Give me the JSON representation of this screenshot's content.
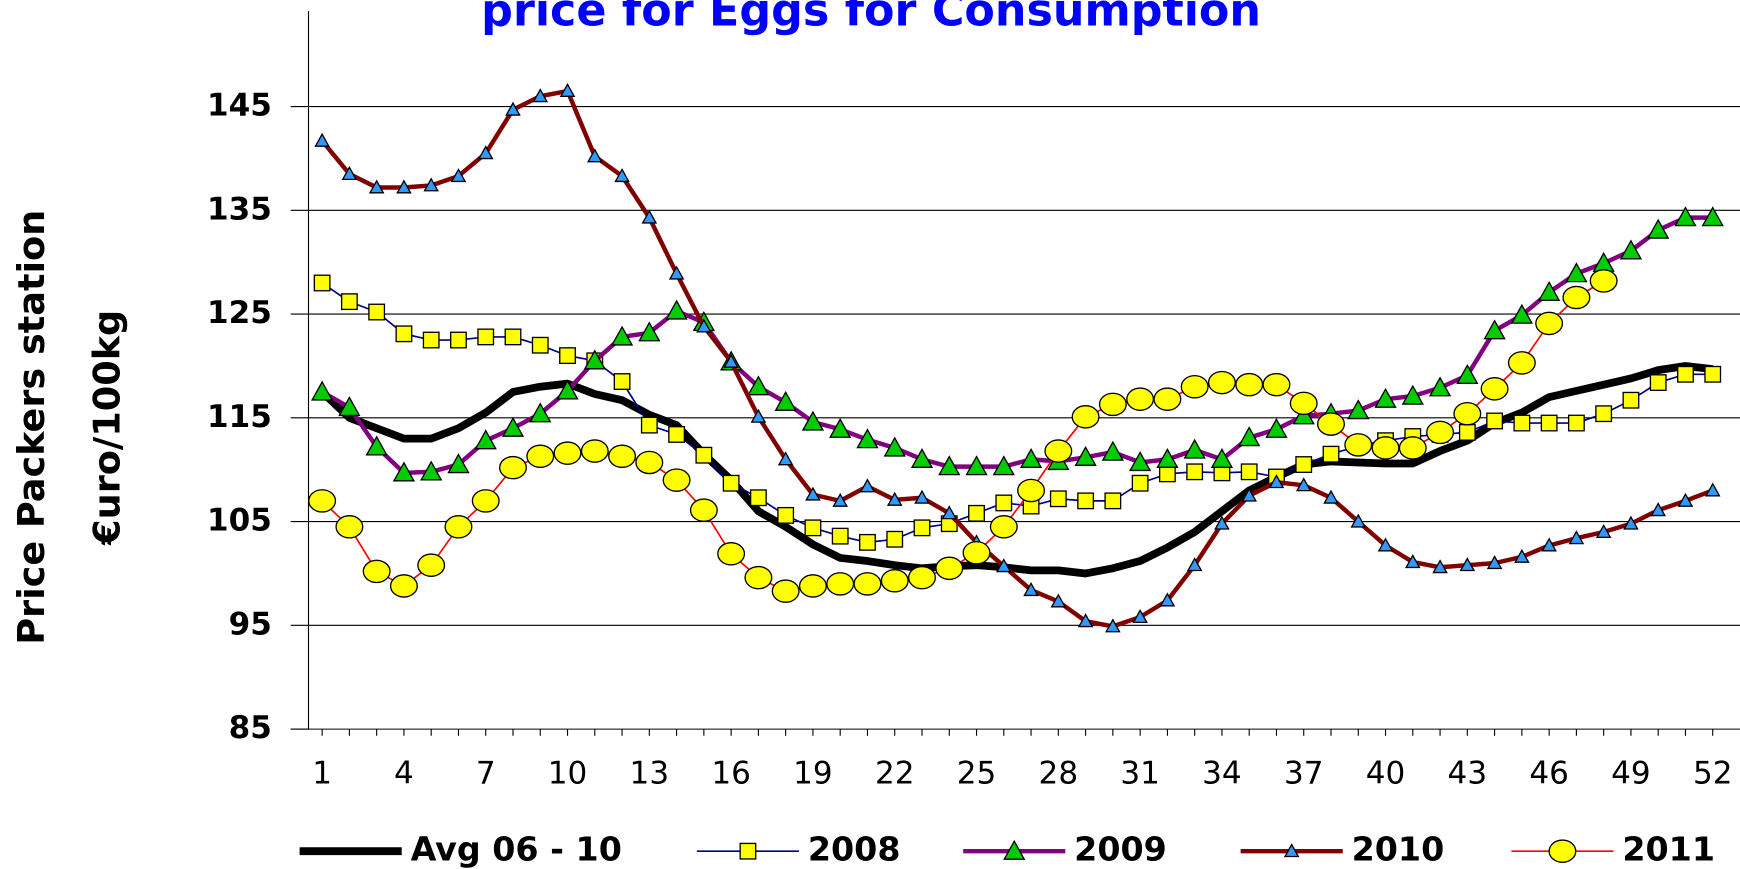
{
  "chart_data": {
    "type": "line",
    "title": "price for Eggs for Consumption",
    "y_label": [
      "Price Packers station",
      "€uro/100kg"
    ],
    "x": [
      1,
      2,
      3,
      4,
      5,
      6,
      7,
      8,
      9,
      10,
      11,
      12,
      13,
      14,
      15,
      16,
      17,
      18,
      19,
      20,
      21,
      22,
      23,
      24,
      25,
      26,
      27,
      28,
      29,
      30,
      31,
      32,
      33,
      34,
      35,
      36,
      37,
      38,
      39,
      40,
      41,
      42,
      43,
      44,
      45,
      46,
      47,
      48,
      49,
      50,
      51,
      52
    ],
    "xlim": [
      0.5,
      53
    ],
    "xticks": [
      1,
      4,
      7,
      10,
      13,
      16,
      19,
      22,
      25,
      28,
      31,
      34,
      37,
      40,
      43,
      46,
      49,
      52
    ],
    "ylim": [
      85,
      155
    ],
    "yticks": [
      85,
      95,
      105,
      115,
      125,
      135,
      145
    ],
    "grid": true,
    "legend": "bottom",
    "series": [
      {
        "name": "Avg 06 - 10",
        "color": "#000000",
        "marker": "none",
        "marker_color": "#000000",
        "line_width": 7,
        "values": [
          117.5,
          115,
          114,
          113,
          113,
          114,
          115.5,
          117.5,
          118,
          118.3,
          117.3,
          116.7,
          115.3,
          114.3,
          111.5,
          109,
          106,
          104.5,
          102.8,
          101.5,
          101.2,
          100.8,
          100.5,
          100.7,
          100.8,
          100.6,
          100.3,
          100.3,
          100,
          100.5,
          101.2,
          102.5,
          104,
          106,
          108,
          109.3,
          110.5,
          110.8,
          110.7,
          110.6,
          110.6,
          111.8,
          112.8,
          114.5,
          115.5,
          117,
          117.6,
          118.2,
          118.8,
          119.6,
          120,
          119.7
        ]
      },
      {
        "name": "2008",
        "color": "#000080",
        "marker": "square",
        "marker_color": "#ffff00",
        "line_width": 1.5,
        "values": [
          128,
          126.2,
          125.2,
          123.1,
          122.5,
          122.5,
          122.8,
          122.8,
          122,
          121,
          120.5,
          118.5,
          114.3,
          113.4,
          111.4,
          108.7,
          107.3,
          105.6,
          104.4,
          103.6,
          103,
          103.3,
          104.4,
          104.8,
          105.8,
          106.8,
          106.5,
          107.2,
          107,
          107,
          108.7,
          109.6,
          109.8,
          109.7,
          109.8,
          109.3,
          110.5,
          111.5,
          112.3,
          112.8,
          113.2,
          113.4,
          113.6,
          114.7,
          114.5,
          114.5,
          114.5,
          115.4,
          116.7,
          118.4,
          119.2,
          119.2
        ]
      },
      {
        "name": "2009",
        "color": "#800080",
        "marker": "triangle",
        "marker_color": "#00cc00",
        "line_width": 4,
        "values": [
          117.5,
          116,
          112.2,
          109.7,
          109.8,
          110.5,
          112.8,
          114,
          115.4,
          117.6,
          120.5,
          122.8,
          123.2,
          125.3,
          124.2,
          120.4,
          118,
          116.5,
          114.6,
          113.9,
          112.9,
          112.1,
          111,
          110.3,
          110.3,
          110.3,
          111,
          110.8,
          111.2,
          111.7,
          110.7,
          111,
          111.9,
          111,
          113.1,
          113.9,
          115.2,
          115.4,
          115.7,
          116.8,
          117.1,
          117.9,
          119.1,
          123.4,
          124.9,
          127.1,
          128.9,
          129.9,
          131.1,
          133.1,
          134.3,
          134.3
        ]
      },
      {
        "name": "2010",
        "color": "#800000",
        "marker": "triangle",
        "marker_color": "#3399ff",
        "line_width": 4,
        "values": [
          141.7,
          138.5,
          137.2,
          137.2,
          137.4,
          138.3,
          140.5,
          144.7,
          146,
          146.5,
          140.2,
          138.3,
          134.3,
          128.9,
          123.8,
          120.4,
          115.1,
          111,
          107.6,
          107,
          108.4,
          107.1,
          107.3,
          105.8,
          103,
          100.7,
          98.4,
          97.3,
          95.4,
          94.9,
          95.8,
          97.4,
          100.8,
          104.8,
          107.5,
          108.8,
          108.5,
          107.3,
          105,
          102.7,
          101.1,
          100.6,
          100.8,
          101,
          101.6,
          102.7,
          103.4,
          104,
          104.8,
          106.1,
          107,
          108
        ]
      },
      {
        "name": "2011",
        "color": "#ff0000",
        "marker": "circle",
        "marker_color": "#ffff00",
        "line_width": 1.5,
        "values": [
          107,
          104.5,
          100.2,
          98.8,
          100.8,
          104.5,
          107,
          110.2,
          111.3,
          111.6,
          111.8,
          111.3,
          110.7,
          109,
          106.1,
          101.9,
          99.6,
          98.3,
          98.8,
          99,
          99,
          99.3,
          99.6,
          100.5,
          102,
          104.5,
          108,
          111.8,
          115.1,
          116.3,
          116.8,
          116.8,
          118,
          118.4,
          118.2,
          118.2,
          116.4,
          114.4,
          112.4,
          112.1,
          112.1,
          113.6,
          115.4,
          117.8,
          120.3,
          124.1,
          126.6,
          128.2,
          null,
          null,
          null,
          null
        ]
      }
    ]
  }
}
